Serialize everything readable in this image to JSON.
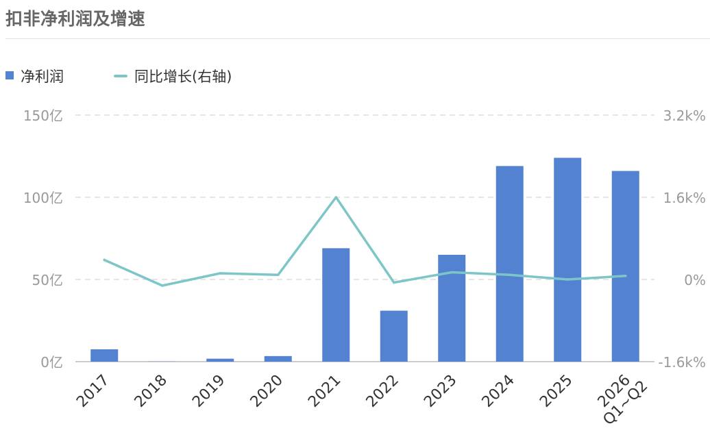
{
  "title": "扣非净利润及增速",
  "colors": {
    "bar": "#5282d0",
    "line": "#7dc6c8",
    "grid": "#dddddd",
    "axis_text": "#999999",
    "x_text": "#333333"
  },
  "legend": {
    "bar_label": "净利润",
    "line_label": "同比增长(右轴)"
  },
  "chart_data": {
    "type": "bar",
    "categories": [
      "2017",
      "2018",
      "2019",
      "2020",
      "2021",
      "2022",
      "2023",
      "2024",
      "2025",
      "2026 Q1~Q2"
    ],
    "x_tick_labels": [
      [
        "2017"
      ],
      [
        "2018"
      ],
      [
        "2019"
      ],
      [
        "2020"
      ],
      [
        "2021"
      ],
      [
        "2022"
      ],
      [
        "2023"
      ],
      [
        "2024"
      ],
      [
        "2025"
      ],
      [
        "2026",
        "Q1~Q2"
      ]
    ],
    "series": [
      {
        "name": "净利润",
        "type": "bar",
        "axis": "left",
        "unit": "亿",
        "values": [
          7.5,
          0.1,
          1.8,
          3.4,
          69,
          31,
          65,
          119,
          124,
          116
        ]
      },
      {
        "name": "同比增长(右轴)",
        "type": "line",
        "axis": "right",
        "unit": "%",
        "values": [
          380,
          -120,
          120,
          90,
          1600,
          -60,
          140,
          90,
          0,
          70
        ]
      }
    ],
    "y_left": {
      "ticks": [
        0,
        50,
        100,
        150
      ],
      "tick_labels": [
        "0亿",
        "50亿",
        "100亿",
        "150亿"
      ],
      "ylim": [
        0,
        150
      ]
    },
    "y_right": {
      "ticks": [
        -1600,
        0,
        1600,
        3200
      ],
      "tick_labels": [
        "-1.6k%",
        "0%",
        "1.6k%",
        "3.2k%"
      ],
      "ylim": [
        -1600,
        3200
      ]
    },
    "grid": true,
    "legend_position": "top-left"
  }
}
